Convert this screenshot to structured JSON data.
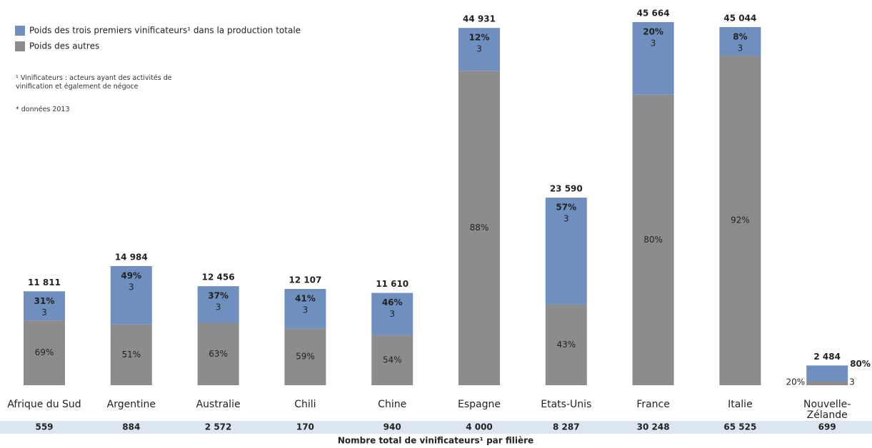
{
  "chart_data": {
    "type": "bar",
    "stacked": true,
    "categories": [
      "Afrique du Sud",
      "Argentine",
      "Australie",
      "Chili",
      "Chine",
      "Espagne",
      "Etats-Unis",
      "France",
      "Italie",
      "Nouvelle-Zélande"
    ],
    "series": [
      {
        "name": "Poids des trois premiers vinificateurs¹ dans la production totale",
        "color": "#6f8fbe",
        "values": [
          31,
          49,
          37,
          41,
          46,
          12,
          57,
          20,
          8,
          80
        ],
        "value_labels": [
          "31%",
          "49%",
          "37%",
          "41%",
          "46%",
          "12%",
          "57%",
          "20%",
          "8%",
          "80%"
        ],
        "counts": [
          3,
          3,
          3,
          3,
          3,
          3,
          3,
          3,
          3,
          3
        ]
      },
      {
        "name": "Poids des autres",
        "color": "#8c8c8c",
        "values": [
          69,
          51,
          63,
          59,
          54,
          88,
          43,
          80,
          92,
          20
        ],
        "value_labels": [
          "69%",
          "51%",
          "63%",
          "59%",
          "54%",
          "88%",
          "43%",
          "80%",
          "92%",
          "20%"
        ]
      }
    ],
    "totals": {
      "values": [
        11811,
        14984,
        12456,
        12107,
        11610,
        44931,
        23590,
        45664,
        45044,
        2484
      ],
      "value_labels": [
        "11 811",
        "14 984",
        "12 456",
        "12 107",
        "11 610",
        "44 931",
        "23 590",
        "45 664",
        "45 044",
        "2 484"
      ]
    },
    "footnotes": [
      "¹ Vinificateurs : acteurs ayant des activités de vinification et également de négoce",
      "* données 2013"
    ],
    "table": {
      "title": "Nombre total de vinificateurs¹ par filière",
      "values": [
        559,
        884,
        2572,
        170,
        940,
        4000,
        8287,
        30248,
        65525,
        699
      ],
      "value_labels": [
        "559",
        "884",
        "2 572",
        "170",
        "940",
        "4 000",
        "8 287",
        "30 248",
        "65 525",
        "699"
      ]
    }
  }
}
